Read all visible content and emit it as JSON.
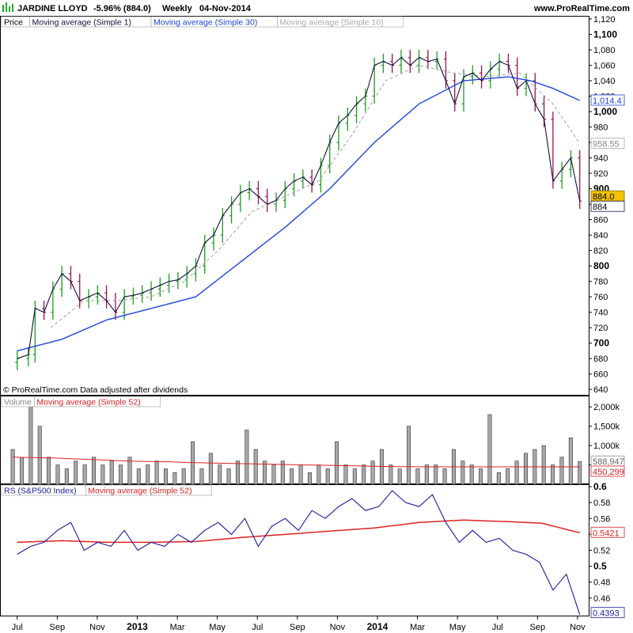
{
  "header": {
    "symbol": "JARDINE LLOYD",
    "change": "-5.96% (884.0)",
    "period": "Weekly",
    "date": "04-Nov-2014",
    "site": "www.ProRealTime.com"
  },
  "colors": {
    "up": "#1f9a1f",
    "down": "#9b1148",
    "ma1": "#101040",
    "ma30": "#2244dd",
    "ma10": "#a8a8a8",
    "volume_bar": "#a8a8a8",
    "volume_ma": "#dd2222",
    "rs_line": "#1a1a9c",
    "rs_ma": "#dd2222",
    "highlight": "#f2c300"
  },
  "chart_data": [
    {
      "type": "line",
      "panel": "price",
      "legend": [
        "Price",
        "Moving average (Simple 1)",
        "Moving average (Simple 30)",
        "Moving average (Simple 10)"
      ],
      "footer_note": "© ProRealTime.com  Data adjusted after dividends",
      "ylim": [
        632,
        1122
      ],
      "y_ticks": [
        640,
        660,
        680,
        700,
        720,
        740,
        760,
        780,
        800,
        820,
        840,
        860,
        880,
        900,
        920,
        940,
        960,
        980,
        1000,
        1020,
        1040,
        1060,
        1080,
        1100,
        1120
      ],
      "y_ticks_bold": [
        700,
        800,
        900,
        1000,
        1100
      ],
      "x_axis_labels": [
        "Jul",
        "Sep",
        "Nov",
        "2013",
        "Mar",
        "May",
        "Jul",
        "Sep",
        "Nov",
        "2014",
        "Mar",
        "May",
        "Jul",
        "Sep",
        "Nov"
      ],
      "x_axis_bold": [
        "2013",
        "2014"
      ],
      "last_price_label": "884.0",
      "price_label_2": "884",
      "ma30_label": "1,014.4",
      "ma10_label": "958.55",
      "close_series": [
        [
          2012.4,
          680
        ],
        [
          2012.45,
          685
        ],
        [
          2012.48,
          745
        ],
        [
          2012.52,
          740
        ],
        [
          2012.56,
          770
        ],
        [
          2012.6,
          790
        ],
        [
          2012.64,
          780
        ],
        [
          2012.68,
          755
        ],
        [
          2012.72,
          760
        ],
        [
          2012.76,
          765
        ],
        [
          2012.8,
          755
        ],
        [
          2012.84,
          740
        ],
        [
          2012.88,
          760
        ],
        [
          2012.92,
          762
        ],
        [
          2012.96,
          765
        ],
        [
          2013.0,
          770
        ],
        [
          2013.04,
          775
        ],
        [
          2013.08,
          780
        ],
        [
          2013.12,
          782
        ],
        [
          2013.16,
          790
        ],
        [
          2013.2,
          800
        ],
        [
          2013.24,
          830
        ],
        [
          2013.28,
          840
        ],
        [
          2013.32,
          865
        ],
        [
          2013.36,
          880
        ],
        [
          2013.4,
          895
        ],
        [
          2013.44,
          900
        ],
        [
          2013.48,
          890
        ],
        [
          2013.52,
          880
        ],
        [
          2013.56,
          885
        ],
        [
          2013.6,
          900
        ],
        [
          2013.64,
          910
        ],
        [
          2013.68,
          915
        ],
        [
          2013.72,
          905
        ],
        [
          2013.76,
          930
        ],
        [
          2013.8,
          960
        ],
        [
          2013.84,
          985
        ],
        [
          2013.88,
          995
        ],
        [
          2013.92,
          1010
        ],
        [
          2013.96,
          1020
        ],
        [
          2014.0,
          1060
        ],
        [
          2014.04,
          1065
        ],
        [
          2014.08,
          1060
        ],
        [
          2014.12,
          1070
        ],
        [
          2014.16,
          1060
        ],
        [
          2014.2,
          1070
        ],
        [
          2014.24,
          1065
        ],
        [
          2014.28,
          1068
        ],
        [
          2014.32,
          1040
        ],
        [
          2014.36,
          1010
        ],
        [
          2014.4,
          1045
        ],
        [
          2014.44,
          1050
        ],
        [
          2014.48,
          1040
        ],
        [
          2014.52,
          1055
        ],
        [
          2014.56,
          1065
        ],
        [
          2014.6,
          1060
        ],
        [
          2014.64,
          1030
        ],
        [
          2014.68,
          1040
        ],
        [
          2014.72,
          1010
        ],
        [
          2014.76,
          990
        ],
        [
          2014.8,
          910
        ],
        [
          2014.84,
          925
        ],
        [
          2014.88,
          940
        ],
        [
          2014.92,
          884
        ]
      ],
      "ma30_series": [
        [
          2012.4,
          690
        ],
        [
          2012.6,
          705
        ],
        [
          2012.8,
          730
        ],
        [
          2013.0,
          745
        ],
        [
          2013.2,
          760
        ],
        [
          2013.4,
          805
        ],
        [
          2013.6,
          850
        ],
        [
          2013.8,
          900
        ],
        [
          2014.0,
          960
        ],
        [
          2014.2,
          1010
        ],
        [
          2014.4,
          1040
        ],
        [
          2014.6,
          1045
        ],
        [
          2014.7,
          1040
        ],
        [
          2014.8,
          1030
        ],
        [
          2014.92,
          1014.4
        ]
      ],
      "ma10_series": [
        [
          2012.55,
          720
        ],
        [
          2012.7,
          755
        ],
        [
          2012.85,
          755
        ],
        [
          2013.0,
          760
        ],
        [
          2013.15,
          780
        ],
        [
          2013.3,
          820
        ],
        [
          2013.45,
          870
        ],
        [
          2013.6,
          890
        ],
        [
          2013.75,
          910
        ],
        [
          2013.9,
          970
        ],
        [
          2014.05,
          1040
        ],
        [
          2014.2,
          1060
        ],
        [
          2014.35,
          1050
        ],
        [
          2014.5,
          1045
        ],
        [
          2014.65,
          1050
        ],
        [
          2014.8,
          1010
        ],
        [
          2014.92,
          958.55
        ]
      ]
    },
    {
      "type": "bar",
      "panel": "volume",
      "legend": [
        "Volume",
        "Moving average (Simple 52)"
      ],
      "ylim": [
        0,
        2250000
      ],
      "y_ticks": [
        500000,
        1000000,
        1500000,
        2000000
      ],
      "y_tick_labels": [
        "500k",
        "1,000k",
        "1,500k",
        "2,000k"
      ],
      "last_volume_label": "588,947",
      "ma_label": "450,299",
      "values": [
        900000,
        700000,
        2200000,
        1500000,
        700000,
        500000,
        400000,
        600000,
        500000,
        700000,
        500000,
        600000,
        500000,
        700000,
        400000,
        500000,
        600000,
        400000,
        300000,
        400000,
        1100000,
        400000,
        800000,
        500000,
        400000,
        600000,
        1400000,
        900000,
        600000,
        500000,
        600000,
        400000,
        500000,
        300000,
        500000,
        400000,
        1100000,
        500000,
        400000,
        500000,
        600000,
        900000,
        500000,
        400000,
        1500000,
        400000,
        500000,
        500000,
        400000,
        900000,
        600000,
        500000,
        400000,
        1800000,
        300000,
        400000,
        600000,
        800000,
        900000,
        1000000,
        500000,
        700000,
        1200000,
        588947
      ],
      "ma_values": [
        700000,
        690000,
        680000,
        660000,
        640000,
        620000,
        600000,
        590000,
        580000,
        560000,
        550000,
        540000,
        530000,
        520000,
        510000,
        500000,
        490000,
        480000,
        470000,
        460000,
        455000,
        450000,
        450000,
        450000,
        450000,
        450000,
        450000,
        450000,
        450000,
        450299
      ]
    },
    {
      "type": "line",
      "panel": "rs",
      "legend": [
        "RS (S&P500 Index)",
        "Moving average (Simple 52)"
      ],
      "ylim": [
        0.437,
        0.601
      ],
      "y_ticks": [
        0.46,
        0.48,
        0.5,
        0.52,
        0.54,
        0.56,
        0.58,
        0.6
      ],
      "y_ticks_bold": [
        0.5,
        0.6
      ],
      "rs_label": "0.4393",
      "rs_ma_label": "0.5421",
      "rs_series": [
        [
          2012.4,
          0.515
        ],
        [
          2012.46,
          0.525
        ],
        [
          2012.52,
          0.53
        ],
        [
          2012.58,
          0.545
        ],
        [
          2012.64,
          0.555
        ],
        [
          2012.7,
          0.52
        ],
        [
          2012.76,
          0.53
        ],
        [
          2012.82,
          0.525
        ],
        [
          2012.88,
          0.545
        ],
        [
          2012.94,
          0.52
        ],
        [
          2013.0,
          0.53
        ],
        [
          2013.06,
          0.525
        ],
        [
          2013.12,
          0.54
        ],
        [
          2013.18,
          0.53
        ],
        [
          2013.24,
          0.545
        ],
        [
          2013.3,
          0.555
        ],
        [
          2013.36,
          0.54
        ],
        [
          2013.42,
          0.56
        ],
        [
          2013.48,
          0.525
        ],
        [
          2013.54,
          0.55
        ],
        [
          2013.6,
          0.56
        ],
        [
          2013.66,
          0.545
        ],
        [
          2013.72,
          0.57
        ],
        [
          2013.78,
          0.56
        ],
        [
          2013.84,
          0.575
        ],
        [
          2013.9,
          0.585
        ],
        [
          2013.96,
          0.57
        ],
        [
          2014.02,
          0.575
        ],
        [
          2014.08,
          0.595
        ],
        [
          2014.14,
          0.58
        ],
        [
          2014.2,
          0.575
        ],
        [
          2014.26,
          0.59
        ],
        [
          2014.32,
          0.555
        ],
        [
          2014.38,
          0.53
        ],
        [
          2014.44,
          0.545
        ],
        [
          2014.5,
          0.53
        ],
        [
          2014.56,
          0.535
        ],
        [
          2014.62,
          0.52
        ],
        [
          2014.68,
          0.515
        ],
        [
          2014.74,
          0.505
        ],
        [
          2014.8,
          0.47
        ],
        [
          2014.86,
          0.49
        ],
        [
          2014.92,
          0.4393
        ]
      ],
      "rs_ma_series": [
        [
          2012.4,
          0.53
        ],
        [
          2012.6,
          0.532
        ],
        [
          2012.8,
          0.53
        ],
        [
          2013.0,
          0.53
        ],
        [
          2013.2,
          0.531
        ],
        [
          2013.4,
          0.536
        ],
        [
          2013.6,
          0.54
        ],
        [
          2013.8,
          0.544
        ],
        [
          2014.0,
          0.548
        ],
        [
          2014.2,
          0.555
        ],
        [
          2014.4,
          0.558
        ],
        [
          2014.6,
          0.556
        ],
        [
          2014.75,
          0.554
        ],
        [
          2014.92,
          0.5421
        ]
      ]
    }
  ]
}
